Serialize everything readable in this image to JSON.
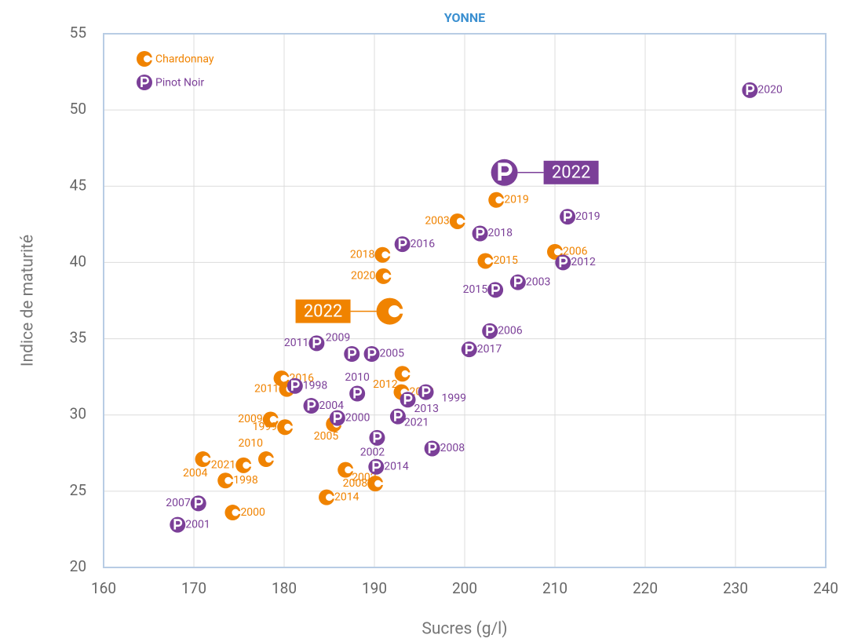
{
  "chart_data": {
    "type": "scatter",
    "title": "YONNE",
    "x_label": "Sucres (g/l)",
    "y_label": "Indice de maturité",
    "xlim": [
      160,
      240
    ],
    "xticks": [
      160,
      170,
      180,
      190,
      200,
      210,
      220,
      230,
      240
    ],
    "ylim": [
      20,
      55
    ],
    "yticks": [
      20,
      25,
      30,
      35,
      40,
      45,
      50,
      55
    ],
    "grid": true,
    "legend": "top-left",
    "series": [
      {
        "name": "Chardonnay",
        "color": "#f08300",
        "labels": [
          "2022",
          "2019",
          "2003",
          "2018",
          "2020",
          "2015",
          "2006",
          "2016",
          "2011",
          "2012",
          "2013",
          "2009",
          "1999",
          "2005",
          "2004",
          "2021",
          "2010",
          "1998",
          "2002",
          "2008",
          "2014",
          "2000"
        ],
        "x": [
          191.7,
          203.5,
          199.2,
          190.9,
          191.0,
          202.3,
          210.0,
          179.7,
          180.3,
          193.1,
          193.0,
          178.5,
          180.1,
          185.5,
          171.0,
          175.5,
          178.0,
          173.5,
          186.8,
          190.1,
          184.7,
          174.3
        ],
        "values": [
          36.8,
          44.1,
          42.7,
          40.5,
          39.1,
          40.1,
          40.7,
          32.4,
          31.7,
          32.7,
          31.5,
          29.7,
          29.2,
          29.4,
          27.1,
          26.7,
          27.1,
          25.7,
          26.4,
          25.5,
          24.6,
          23.6
        ]
      },
      {
        "name": "Pinot Noir",
        "color": "#7b3f98",
        "labels": [
          "2022",
          "2020",
          "2019",
          "2018",
          "2016",
          "2012",
          "2003",
          "2015",
          "2006",
          "2017",
          "2011",
          "2009",
          "2005",
          "1998",
          "2004",
          "2010",
          "1999",
          "2013",
          "2000",
          "2021",
          "2002",
          "2008",
          "2014",
          "2007",
          "2001"
        ],
        "x": [
          204.4,
          231.6,
          211.4,
          201.7,
          193.1,
          210.9,
          205.9,
          203.4,
          202.8,
          200.5,
          183.6,
          187.5,
          189.7,
          181.2,
          183.0,
          188.1,
          195.7,
          193.7,
          185.9,
          192.6,
          190.3,
          196.4,
          190.2,
          170.5,
          168.2
        ],
        "values": [
          45.9,
          51.3,
          43.0,
          41.9,
          41.2,
          40.0,
          38.7,
          38.2,
          35.5,
          34.3,
          34.7,
          34.0,
          34.0,
          31.9,
          30.6,
          31.4,
          31.5,
          31.0,
          29.8,
          29.9,
          28.5,
          27.8,
          26.6,
          24.2,
          22.8
        ]
      }
    ]
  }
}
